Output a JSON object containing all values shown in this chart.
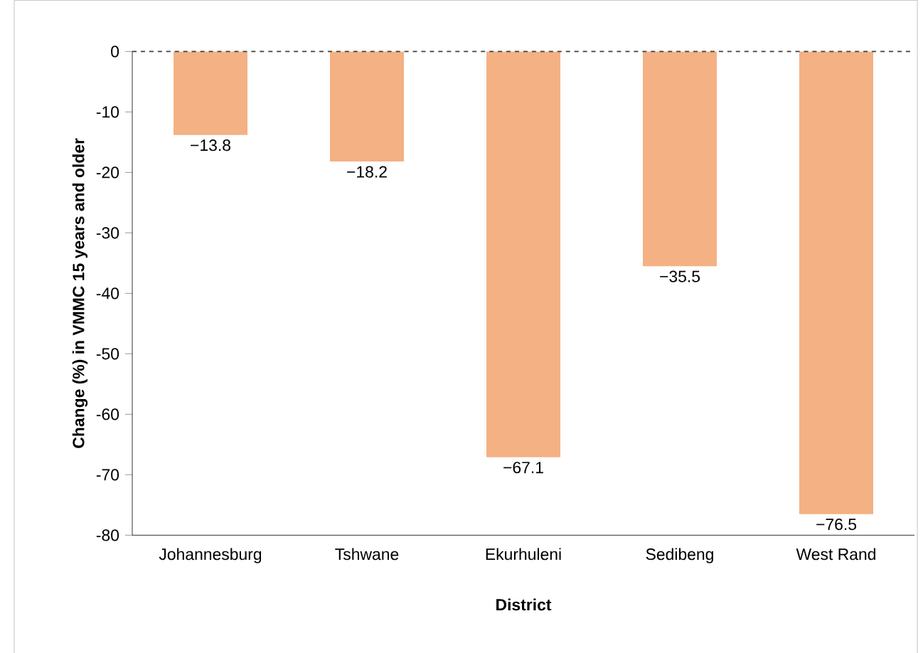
{
  "chart_data": {
    "type": "bar",
    "xlabel": "District",
    "ylabel": "Change (%) in VMMC 15 years and older",
    "categories": [
      "Johannesburg",
      "Tshwane",
      "Ekurhuleni",
      "Sedibeng",
      "West Rand"
    ],
    "values": [
      -13.8,
      -18.2,
      -67.1,
      -35.5,
      -76.5
    ],
    "value_labels": [
      "−13.8",
      "−18.2",
      "−67.1",
      "−35.5",
      "−76.5"
    ],
    "color": "#f4b183",
    "ylim": [
      -80,
      0
    ],
    "yticks": [
      -80,
      -70,
      -60,
      -50,
      -40,
      -30,
      -20,
      -10,
      0
    ],
    "ref_lines": [
      {
        "axis": "y",
        "value": 0,
        "line_style": "dashed",
        "color": "#404040"
      }
    ]
  }
}
